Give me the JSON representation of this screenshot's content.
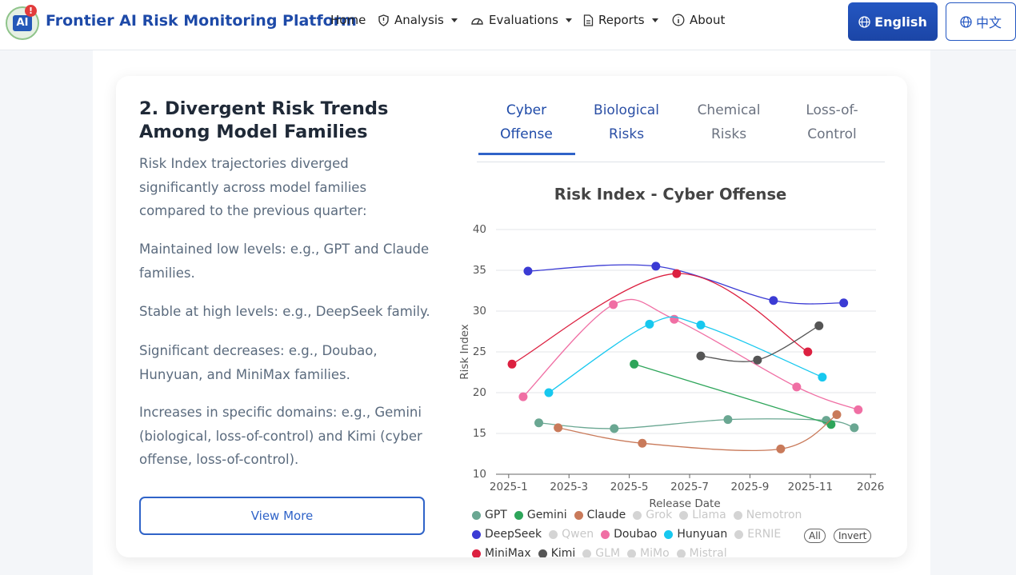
{
  "header": {
    "logo": "AI",
    "logo_badge": "!",
    "title": "Frontier AI Risk Monitoring Platform",
    "nav": [
      "Home",
      "Analysis",
      "Evaluations",
      "Reports",
      "About"
    ],
    "languages": [
      "English",
      "中文"
    ]
  },
  "section": {
    "title": "2. Divergent Risk Trends Among Model Families",
    "paragraphs": [
      "Risk Index trajectories diverged significantly across model families compared to the previous quarter:",
      "Maintained low levels: e.g., GPT and Claude families.",
      "Stable at high levels: e.g., DeepSeek family.",
      "Significant decreases: e.g., Doubao, Hunyuan, and MiniMax families.",
      "Increases in specific domains: e.g., Gemini (biological, loss-of-control) and Kimi (cyber offense, loss-of-control)."
    ],
    "button": "View More"
  },
  "tabs": [
    "Cyber Offense",
    "Biological Risks",
    "Chemical Risks",
    "Loss-of-Control"
  ],
  "chart_data": {
    "type": "line",
    "title": "Risk Index - Cyber Offense",
    "x_label": "Release Date",
    "y_label": "Risk Index",
    "smooth": true,
    "grid": true,
    "xlim": [
      -0.42,
      12.18
    ],
    "xticks": [
      {
        "value": 0,
        "label": "2025-1"
      },
      {
        "value": 2,
        "label": "2025-3"
      },
      {
        "value": 4,
        "label": "2025-5"
      },
      {
        "value": 6,
        "label": "2025-7"
      },
      {
        "value": 8,
        "label": "2025-9"
      },
      {
        "value": 10,
        "label": "2025-11"
      },
      {
        "value": 12,
        "label": "2026"
      }
    ],
    "ylim": [
      10,
      40
    ],
    "yticks": [
      10,
      15,
      20,
      25,
      30,
      35,
      40
    ],
    "series": [
      {
        "name": "GPT",
        "color": "#6aa792",
        "x": [
          1.0,
          3.5,
          7.27,
          10.53,
          11.46
        ],
        "values": [
          16.3,
          15.6,
          16.7,
          16.6,
          15.7
        ]
      },
      {
        "name": "Gemini",
        "color": "#2ea55a",
        "x": [
          4.16,
          10.69
        ],
        "values": [
          23.5,
          16.1
        ]
      },
      {
        "name": "Claude",
        "color": "#c97a5a",
        "x": [
          1.64,
          4.43,
          9.02,
          10.88
        ],
        "values": [
          15.7,
          13.8,
          13.1,
          17.3
        ]
      },
      {
        "name": "Grok",
        "color": "#cccccc",
        "hidden": true,
        "x": [],
        "values": []
      },
      {
        "name": "Llama",
        "color": "#cccccc",
        "hidden": true,
        "x": [],
        "values": []
      },
      {
        "name": "Nemotron",
        "color": "#cccccc",
        "hidden": true,
        "x": [],
        "values": []
      },
      {
        "name": "DeepSeek",
        "color": "#3b3bd4",
        "x": [
          0.64,
          4.88,
          8.78,
          11.11
        ],
        "values": [
          34.9,
          35.5,
          31.3,
          31.0
        ]
      },
      {
        "name": "Qwen",
        "color": "#cccccc",
        "hidden": true,
        "x": [],
        "values": []
      },
      {
        "name": "Doubao",
        "color": "#f06fa4",
        "x": [
          0.48,
          3.47,
          5.49,
          9.55,
          11.59
        ],
        "values": [
          19.5,
          30.8,
          29.0,
          20.7,
          17.9
        ]
      },
      {
        "name": "Hunyuan",
        "color": "#17c8ef",
        "x": [
          1.33,
          4.67,
          6.37,
          10.4
        ],
        "values": [
          20.0,
          28.4,
          28.3,
          21.9
        ]
      },
      {
        "name": "ERNIE",
        "color": "#cccccc",
        "hidden": true,
        "x": [],
        "values": []
      },
      {
        "name": "MiniMax",
        "color": "#dc2040",
        "x": [
          0.11,
          5.57,
          9.92
        ],
        "values": [
          23.5,
          34.6,
          25.0
        ]
      },
      {
        "name": "Kimi",
        "color": "#555555",
        "x": [
          6.37,
          8.25,
          10.29
        ],
        "values": [
          24.5,
          24.0,
          28.2
        ]
      },
      {
        "name": "GLM",
        "color": "#cccccc",
        "hidden": true,
        "x": [],
        "values": []
      },
      {
        "name": "MiMo",
        "color": "#cccccc",
        "hidden": true,
        "x": [],
        "values": []
      },
      {
        "name": "Mistral",
        "color": "#cccccc",
        "hidden": true,
        "x": [],
        "values": []
      }
    ],
    "controls": [
      "All",
      "Invert"
    ]
  }
}
